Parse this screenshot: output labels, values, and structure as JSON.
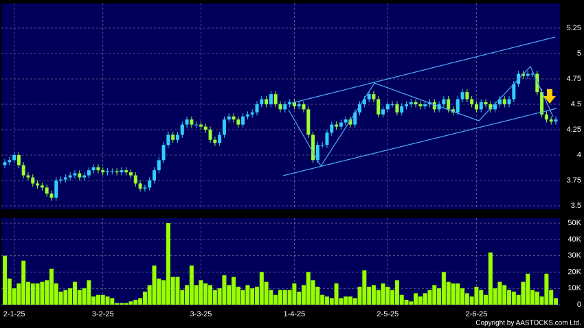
{
  "chart_data": [
    {
      "type": "candlestick",
      "up_color": "#33ccff",
      "down_color": "#99ff33",
      "grid": true,
      "ylim": [
        3.466,
        5.493
      ],
      "yticks": [
        3.5,
        3.75,
        4,
        4.25,
        4.5,
        4.75,
        5,
        5.25
      ],
      "open": [
        3.9,
        3.93,
        3.95,
        4.0,
        3.9,
        3.8,
        3.78,
        3.72,
        3.7,
        3.68,
        3.62,
        3.58,
        3.75,
        3.76,
        3.78,
        3.8,
        3.82,
        3.78,
        3.8,
        3.85,
        3.88,
        3.85,
        3.83,
        3.84,
        3.84,
        3.83,
        3.85,
        3.83,
        3.8,
        3.72,
        3.67,
        3.68,
        3.75,
        3.85,
        3.95,
        4.1,
        4.2,
        4.15,
        4.2,
        4.3,
        4.35,
        4.3,
        4.3,
        4.28,
        4.25,
        4.15,
        4.12,
        4.2,
        4.35,
        4.38,
        4.35,
        4.3,
        4.38,
        4.4,
        4.42,
        4.5,
        4.55,
        4.5,
        4.6,
        4.5,
        4.45,
        4.5,
        4.52,
        4.48,
        4.5,
        4.45,
        4.2,
        3.95,
        4.1,
        4.1,
        4.22,
        4.3,
        4.28,
        4.32,
        4.35,
        4.3,
        4.42,
        4.5,
        4.55,
        4.6,
        4.55,
        4.4,
        4.45,
        4.5,
        4.5,
        4.42,
        4.48,
        4.5,
        4.52,
        4.5,
        4.48,
        4.5,
        4.52,
        4.45,
        4.5,
        4.55,
        4.45,
        4.42,
        4.55,
        4.62,
        4.55,
        4.5,
        4.45,
        4.52,
        4.5,
        4.45,
        4.5,
        4.55,
        4.5,
        4.55,
        4.7,
        4.8,
        4.78,
        4.8,
        4.8,
        4.62,
        4.4,
        4.35,
        4.33
      ],
      "high": [
        3.96,
        3.98,
        4.03,
        4.03,
        3.93,
        3.83,
        3.81,
        3.75,
        3.73,
        3.71,
        3.65,
        3.78,
        3.79,
        3.81,
        3.83,
        3.85,
        3.85,
        3.83,
        3.88,
        3.91,
        3.91,
        3.88,
        3.87,
        3.87,
        3.87,
        3.88,
        3.88,
        3.86,
        3.83,
        3.75,
        3.71,
        3.78,
        3.88,
        3.98,
        4.13,
        4.23,
        4.23,
        4.23,
        4.33,
        4.38,
        4.38,
        4.33,
        4.33,
        4.31,
        4.28,
        4.18,
        4.23,
        4.38,
        4.41,
        4.41,
        4.38,
        4.41,
        4.43,
        4.45,
        4.53,
        4.58,
        4.58,
        4.63,
        4.63,
        4.53,
        4.53,
        4.55,
        4.55,
        4.53,
        4.53,
        4.48,
        4.23,
        4.13,
        4.13,
        4.25,
        4.33,
        4.33,
        4.35,
        4.38,
        4.38,
        4.45,
        4.53,
        4.58,
        4.63,
        4.63,
        4.58,
        4.48,
        4.53,
        4.53,
        4.53,
        4.51,
        4.53,
        4.55,
        4.55,
        4.53,
        4.53,
        4.55,
        4.55,
        4.53,
        4.58,
        4.58,
        4.48,
        4.58,
        4.65,
        4.65,
        4.58,
        4.53,
        4.55,
        4.55,
        4.53,
        4.53,
        4.58,
        4.58,
        4.58,
        4.73,
        4.83,
        4.83,
        4.83,
        4.83,
        4.83,
        4.65,
        4.43,
        4.38,
        4.38
      ],
      "low": [
        3.87,
        3.9,
        3.92,
        3.87,
        3.77,
        3.75,
        3.69,
        3.67,
        3.65,
        3.59,
        3.55,
        3.55,
        3.72,
        3.73,
        3.75,
        3.77,
        3.75,
        3.75,
        3.77,
        3.82,
        3.82,
        3.8,
        3.8,
        3.81,
        3.8,
        3.8,
        3.8,
        3.77,
        3.69,
        3.64,
        3.64,
        3.65,
        3.72,
        3.82,
        3.92,
        4.07,
        4.12,
        4.12,
        4.17,
        4.27,
        4.27,
        4.27,
        4.25,
        4.22,
        4.12,
        4.09,
        4.09,
        4.17,
        4.32,
        4.32,
        4.27,
        4.27,
        4.35,
        4.37,
        4.39,
        4.47,
        4.47,
        4.47,
        4.47,
        4.42,
        4.42,
        4.47,
        4.45,
        4.45,
        4.42,
        4.17,
        3.92,
        3.92,
        4.07,
        4.07,
        4.19,
        4.25,
        4.25,
        4.29,
        4.27,
        4.27,
        4.39,
        4.47,
        4.52,
        4.52,
        4.37,
        4.37,
        4.42,
        4.47,
        4.39,
        4.39,
        4.45,
        4.47,
        4.47,
        4.45,
        4.45,
        4.47,
        4.42,
        4.42,
        4.47,
        4.42,
        4.39,
        4.39,
        4.52,
        4.52,
        4.47,
        4.42,
        4.42,
        4.47,
        4.42,
        4.42,
        4.47,
        4.47,
        4.47,
        4.52,
        4.67,
        4.75,
        4.75,
        4.77,
        4.59,
        4.37,
        4.32,
        4.3,
        4.3
      ],
      "close": [
        3.93,
        3.95,
        4.0,
        3.9,
        3.8,
        3.78,
        3.72,
        3.7,
        3.68,
        3.62,
        3.58,
        3.75,
        3.76,
        3.78,
        3.8,
        3.82,
        3.78,
        3.8,
        3.85,
        3.88,
        3.85,
        3.83,
        3.84,
        3.84,
        3.83,
        3.85,
        3.83,
        3.8,
        3.72,
        3.67,
        3.68,
        3.75,
        3.85,
        3.95,
        4.1,
        4.2,
        4.15,
        4.2,
        4.3,
        4.35,
        4.3,
        4.3,
        4.28,
        4.25,
        4.15,
        4.12,
        4.2,
        4.35,
        4.38,
        4.35,
        4.3,
        4.38,
        4.4,
        4.42,
        4.5,
        4.55,
        4.5,
        4.6,
        4.5,
        4.45,
        4.5,
        4.52,
        4.48,
        4.5,
        4.45,
        4.2,
        3.95,
        4.1,
        4.1,
        4.22,
        4.3,
        4.28,
        4.32,
        4.35,
        4.3,
        4.42,
        4.5,
        4.55,
        4.6,
        4.55,
        4.4,
        4.45,
        4.5,
        4.5,
        4.42,
        4.48,
        4.5,
        4.52,
        4.5,
        4.48,
        4.5,
        4.52,
        4.45,
        4.5,
        4.55,
        4.45,
        4.42,
        4.55,
        4.62,
        4.55,
        4.5,
        4.45,
        4.52,
        4.5,
        4.45,
        4.5,
        4.55,
        4.5,
        4.55,
        4.7,
        4.8,
        4.78,
        4.8,
        4.8,
        4.62,
        4.4,
        4.35,
        4.33,
        4.35
      ]
    },
    {
      "type": "bar",
      "color": "#99ff00",
      "grid": true,
      "ylim": [
        0,
        53000
      ],
      "yticks": [
        0,
        {
          "value": 10000,
          "label": "10K"
        },
        {
          "value": 20000,
          "label": "20K"
        },
        {
          "value": 30000,
          "label": "30K"
        },
        {
          "value": 40000,
          "label": "40K"
        },
        {
          "value": 50000,
          "label": "50K"
        }
      ],
      "xticks": [
        {
          "value": 2,
          "label": "2-1-25"
        },
        {
          "value": 21,
          "label": "3-2-25"
        },
        {
          "value": 42,
          "label": "3-3-25"
        },
        {
          "value": 62,
          "label": "1-4-25"
        },
        {
          "value": 82,
          "label": "2-5-25"
        },
        {
          "value": 101,
          "label": "2-6-25"
        }
      ],
      "values": [
        30000,
        16000,
        10000,
        13000,
        27000,
        14000,
        13000,
        13000,
        14000,
        15000,
        22000,
        13000,
        8000,
        9000,
        10000,
        14000,
        9000,
        10000,
        15000,
        5000,
        6000,
        6000,
        5000,
        4000,
        1000,
        1000,
        1000,
        2000,
        3000,
        4000,
        8000,
        12000,
        24000,
        16000,
        15000,
        50000,
        17000,
        17000,
        9000,
        12000,
        24000,
        12000,
        15000,
        13000,
        12000,
        9000,
        10000,
        18000,
        12000,
        17000,
        11000,
        9000,
        12000,
        10000,
        11000,
        20000,
        14000,
        9000,
        6000,
        9000,
        9000,
        9000,
        13000,
        8000,
        12000,
        20000,
        15000,
        11000,
        6000,
        5000,
        4000,
        13000,
        4000,
        5000,
        5000,
        4000,
        11000,
        21000,
        11000,
        12000,
        9000,
        13000,
        11000,
        9000,
        15000,
        6000,
        3000,
        2000,
        7000,
        5000,
        7000,
        9000,
        12000,
        10000,
        20000,
        14000,
        13000,
        13000,
        10000,
        7000,
        5000,
        11000,
        9000,
        6000,
        32000,
        10000,
        14000,
        12000,
        9000,
        8000,
        6000,
        14000,
        19000,
        9000,
        8000,
        5000,
        19000,
        9000,
        4000
      ]
    }
  ],
  "copyright": "Copyright by AASTOCKS.com Ltd."
}
